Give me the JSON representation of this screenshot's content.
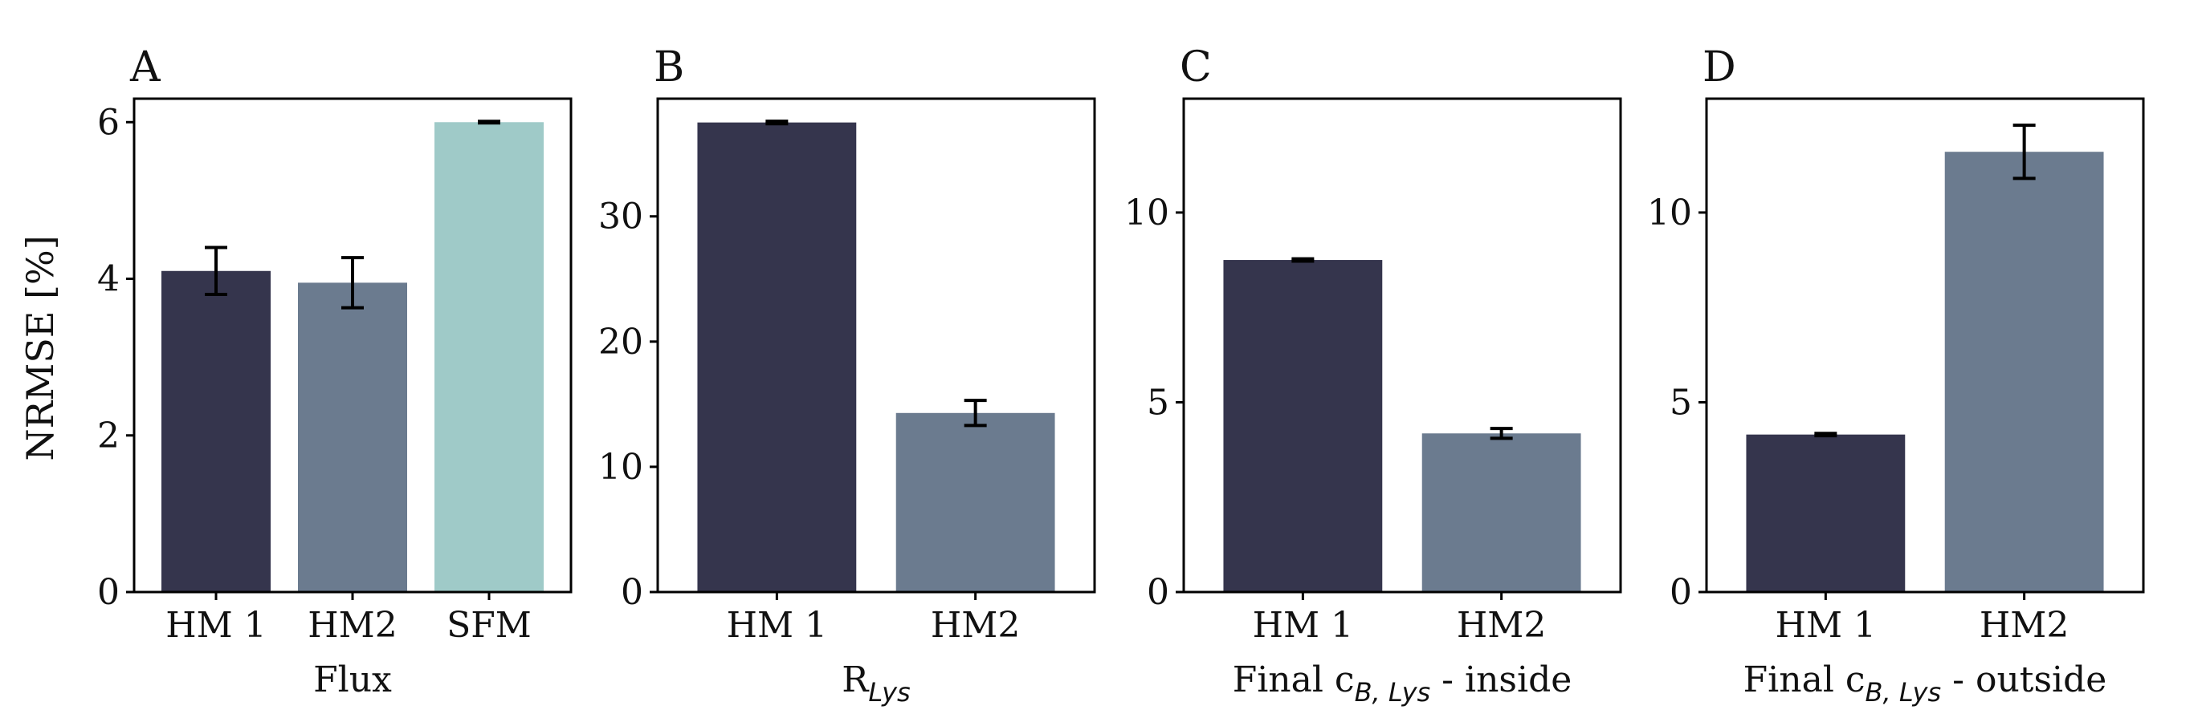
{
  "figure": {
    "ylabel": "NRMSE [%]"
  },
  "colors": {
    "HM 1": "#35354d",
    "HM2": "#6b7b8f",
    "SFM": "#9fcac8"
  },
  "chart_data": [
    {
      "type": "bar",
      "panel": "A",
      "categories": [
        "HM 1",
        "HM2",
        "SFM"
      ],
      "values": [
        4.1,
        3.95,
        6.0
      ],
      "errors": [
        0.3,
        0.32,
        0.01
      ],
      "xlabel": "Flux",
      "ylabel": "NRMSE [%]",
      "ylim": [
        0,
        6.3
      ],
      "yticks": [
        0,
        2,
        4,
        6
      ]
    },
    {
      "type": "bar",
      "panel": "B",
      "categories": [
        "HM 1",
        "HM2"
      ],
      "values": [
        37.5,
        14.3
      ],
      "errors": [
        0.1,
        1.0
      ],
      "xlabel": "R",
      "xlabel_sub": "Lys",
      "ylim": [
        0,
        39.4
      ],
      "yticks": [
        0,
        10,
        20,
        30
      ]
    },
    {
      "type": "bar",
      "panel": "C",
      "categories": [
        "HM 1",
        "HM2"
      ],
      "values": [
        8.75,
        4.18
      ],
      "errors": [
        0.03,
        0.13
      ],
      "xlabel_pre": "Final c",
      "xlabel_sub": "B, Lys",
      "xlabel_post": " - inside",
      "ylim": [
        0,
        13.0
      ],
      "yticks": [
        0,
        5,
        10
      ]
    },
    {
      "type": "bar",
      "panel": "D",
      "categories": [
        "HM 1",
        "HM2"
      ],
      "values": [
        4.15,
        11.6
      ],
      "errors": [
        0.03,
        0.7
      ],
      "xlabel_pre": "Final c",
      "xlabel_sub": "B, Lys",
      "xlabel_post": " - outside",
      "ylim": [
        0,
        13.0
      ],
      "yticks": [
        0,
        5,
        10
      ]
    }
  ]
}
